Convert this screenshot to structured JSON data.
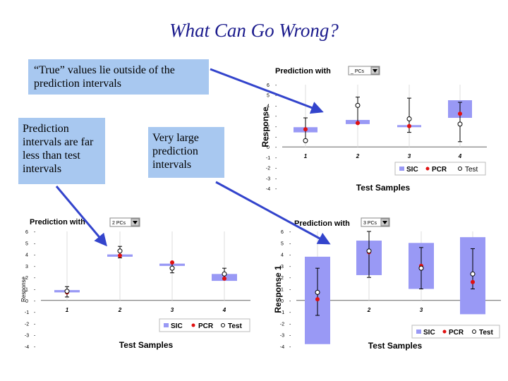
{
  "slide": {
    "title": "What Can Go Wrong?",
    "callouts": [
      "“True” values lie outside of the prediction intervals",
      "Prediction intervals are far less than test intervals",
      "Very large prediction intervals"
    ]
  },
  "colors": {
    "sic": "#9999f5",
    "pcr": "#e01010",
    "test": "#ffffff",
    "arrow": "#3344cc",
    "callout_bg": "#a8c8f0",
    "title": "#1a1a8c"
  },
  "chart_data": [
    {
      "type": "scatter",
      "title": "Prediction with",
      "dropdown": "_ PCs",
      "xlabel": "Test Samples",
      "ylabel": "Response",
      "categories": [
        "1",
        "2",
        "3",
        "4"
      ],
      "y_ticks": [
        "6",
        "5",
        "4",
        "3",
        "2",
        "1",
        "0",
        "-1",
        "-2",
        "-3",
        "-4"
      ],
      "ylim": [
        -4,
        6
      ],
      "legend": [
        "SIC",
        "PCR",
        "Test"
      ],
      "legend_position": "bottom-right",
      "sic_intervals": [
        [
          1.4,
          1.9
        ],
        [
          2.2,
          2.6
        ],
        [
          1.9,
          2.1
        ],
        [
          2.8,
          4.5
        ]
      ],
      "pcr": [
        1.7,
        2.3,
        2.0,
        3.2
      ],
      "test": [
        0.6,
        4.0,
        2.7,
        2.2
      ],
      "test_error": [
        [
          0.6,
          2.8
        ],
        [
          2.3,
          4.8
        ],
        [
          1.4,
          4.7
        ],
        [
          0.5,
          4.3
        ]
      ]
    },
    {
      "type": "scatter",
      "title": "Prediction with",
      "dropdown": "2 PCs",
      "xlabel": "Test Samples",
      "ylabel": "Response",
      "categories": [
        "1",
        "2",
        "3",
        "4"
      ],
      "y_ticks": [
        "6",
        "5",
        "4",
        "3",
        "2",
        "1",
        "0",
        "-1",
        "-2",
        "-3",
        "-4"
      ],
      "ylim": [
        -4,
        6
      ],
      "legend": [
        "SIC",
        "PCR",
        "Test"
      ],
      "legend_position": "bottom-right",
      "sic_intervals": [
        [
          0.7,
          0.9
        ],
        [
          3.8,
          4.0
        ],
        [
          3.0,
          3.2
        ],
        [
          1.7,
          2.3
        ]
      ],
      "pcr": [
        0.7,
        3.9,
        3.3,
        1.9
      ],
      "test": [
        0.8,
        4.3,
        2.8,
        2.3
      ],
      "test_error": [
        [
          0.3,
          1.2
        ],
        [
          3.7,
          4.7
        ],
        [
          2.4,
          3.3
        ],
        [
          1.9,
          2.8
        ]
      ]
    },
    {
      "type": "scatter",
      "title": "Prediction with",
      "dropdown": "3 PCs",
      "xlabel": "Test Samples",
      "ylabel": "Response 1",
      "categories": [
        "1",
        "2",
        "3",
        "4"
      ],
      "y_ticks": [
        "6",
        "5",
        "4",
        "3",
        "2",
        "1",
        "0",
        "-1",
        "-2",
        "-3",
        "-4"
      ],
      "ylim": [
        -4,
        6
      ],
      "legend": [
        "SIC",
        "PCR",
        "Test"
      ],
      "legend_position": "bottom-right",
      "sic_intervals": [
        [
          -3.8,
          3.8
        ],
        [
          2.2,
          5.2
        ],
        [
          1.0,
          5.0
        ],
        [
          -1.2,
          5.5
        ]
      ],
      "pcr": [
        0.1,
        4.2,
        3.0,
        1.6
      ],
      "test": [
        0.7,
        4.3,
        2.8,
        2.3
      ],
      "test_error": [
        [
          -1.3,
          2.8
        ],
        [
          2.0,
          6.0
        ],
        [
          1.0,
          4.6
        ],
        [
          1.0,
          4.5
        ]
      ]
    }
  ]
}
